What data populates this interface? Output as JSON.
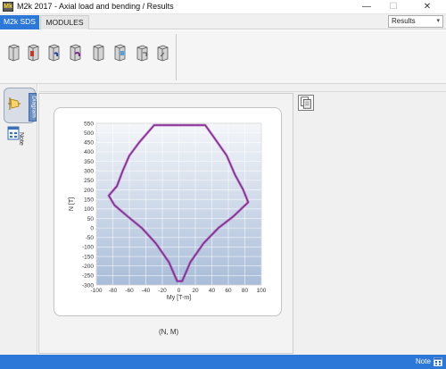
{
  "window": {
    "title": "M2k 2017 - Axial load and bending / Results",
    "app_icon_text": "Mk",
    "minimize_glyph": "—",
    "maximize_glyph": "☐",
    "close_glyph": "✕"
  },
  "tabs": [
    {
      "label": "M2k SDS",
      "active": true
    },
    {
      "label": "MODULES",
      "active": false
    }
  ],
  "view_select": {
    "value": "Results",
    "caret": "▾"
  },
  "ribbon": {
    "icons": [
      "section-column-icon",
      "section-rect-hollow-icon",
      "section-load-icon",
      "section-biaxial-icon",
      "section-bending-icon",
      "section-shear-icon",
      "section-ring-icon",
      "section-torsion-icon"
    ]
  },
  "sidebar": {
    "diagram_label": "Diagram",
    "note_label": "Note"
  },
  "chart_caption": "(N, M)",
  "statusbar": {
    "label": "Note"
  },
  "colors": {
    "accent": "#2b78d8",
    "curve": "#8a2a96",
    "plot_bg_top": "#f4f6f9",
    "plot_bg_bottom": "#a9bdd9"
  },
  "chart_data": {
    "type": "line",
    "title": "",
    "xlabel": "My [T-m]",
    "ylabel": "N [T]",
    "xlim": [
      -100,
      100
    ],
    "ylim": [
      -300,
      550
    ],
    "grid": true,
    "xticks": [
      -100,
      -80,
      -60,
      -40,
      -20,
      0,
      20,
      40,
      60,
      80,
      100
    ],
    "yticks": [
      -300,
      -250,
      -200,
      -150,
      -100,
      -50,
      0,
      50,
      100,
      150,
      200,
      250,
      300,
      350,
      400,
      450,
      500,
      550
    ],
    "series": [
      {
        "values": [
          [
            -3,
            540
          ],
          [
            -30,
            540
          ],
          [
            -48,
            450
          ],
          [
            -60,
            380
          ],
          [
            -68,
            300
          ],
          [
            -75,
            220
          ],
          [
            -85,
            170
          ],
          [
            -78,
            120
          ],
          [
            -62,
            60
          ],
          [
            -45,
            0
          ],
          [
            -28,
            -80
          ],
          [
            -12,
            -180
          ],
          [
            -2,
            -280
          ],
          [
            4,
            -280
          ],
          [
            14,
            -180
          ],
          [
            30,
            -80
          ],
          [
            48,
            0
          ],
          [
            66,
            60
          ],
          [
            84,
            135
          ],
          [
            78,
            200
          ],
          [
            68,
            280
          ],
          [
            58,
            380
          ],
          [
            42,
            480
          ],
          [
            32,
            540
          ],
          [
            3,
            540
          ]
        ]
      }
    ]
  }
}
